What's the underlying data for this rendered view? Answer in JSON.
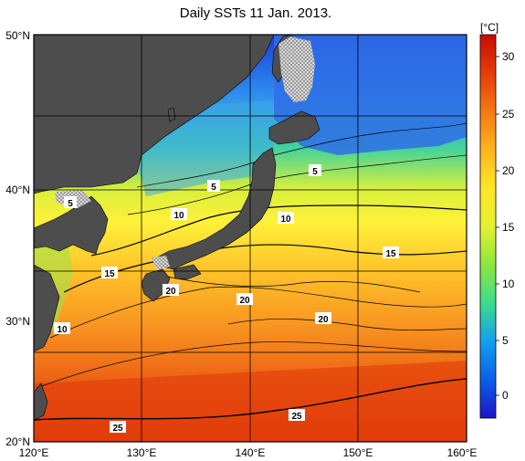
{
  "title": "Daily SSTs 11 Jan. 2013.",
  "lat_ticks": [
    "50°N",
    "40°N",
    "30°N",
    "20°N"
  ],
  "lon_ticks": [
    "120°E",
    "130°E",
    "140°E",
    "150°E",
    "160°E"
  ],
  "colorbar": {
    "unit": "[°C]",
    "ticks": [
      "30",
      "25",
      "20",
      "15",
      "10",
      "5",
      "0"
    ],
    "range": [
      -2,
      32
    ],
    "colors": [
      "#1e14c8",
      "#0a5fe6",
      "#14a0f0",
      "#3cdc8c",
      "#8ce63c",
      "#e6f032",
      "#ffe628",
      "#ffb41e",
      "#f57814",
      "#e63c0a",
      "#c80a00"
    ]
  },
  "contour_labels": [
    "5",
    "5",
    "5",
    "10",
    "10",
    "15",
    "15",
    "20",
    "20",
    "20",
    "10",
    "25",
    "25"
  ],
  "colors": {
    "land": "#4d4d4d",
    "ice": "#cccccc",
    "contour": "#000000"
  }
}
